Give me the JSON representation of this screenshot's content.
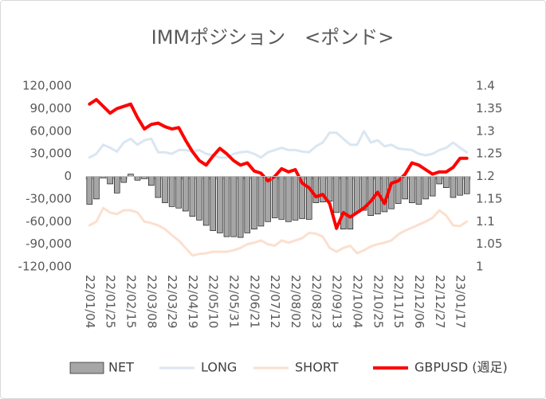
{
  "chart_data": {
    "type": "combo",
    "title": "IMMポジション　<ポンド>",
    "legend": "bottom",
    "categories": [
      "22/01/04",
      null,
      null,
      "22/01/25",
      null,
      null,
      "22/02/15",
      null,
      null,
      "22/03/08",
      null,
      null,
      "22/03/29",
      null,
      null,
      "22/04/19",
      null,
      null,
      "22/05/10",
      null,
      null,
      "22/05/31",
      null,
      null,
      "22/06/21",
      null,
      null,
      "22/07/12",
      null,
      null,
      "22/08/02",
      null,
      null,
      "22/08/23",
      null,
      null,
      "22/09/13",
      null,
      null,
      "22/10/04",
      null,
      null,
      "22/10/25",
      null,
      null,
      "22/11/15",
      null,
      null,
      "22/12/06",
      null,
      null,
      "22/12/27",
      null,
      null,
      "23/01/17",
      null
    ],
    "ylim": [
      -120000,
      120000
    ],
    "yticks": [
      {
        "value": 120000,
        "label": "120,000"
      },
      {
        "value": 90000,
        "label": "90,000"
      },
      {
        "value": 60000,
        "label": "60,000"
      },
      {
        "value": 30000,
        "label": "30,000"
      },
      0,
      {
        "value": -30000,
        "label": "-30,000"
      },
      {
        "value": -60000,
        "label": "-60,000"
      },
      {
        "value": -90000,
        "label": "-90,000"
      },
      {
        "value": -120000,
        "label": "-120,000"
      }
    ],
    "y2lim": [
      1,
      1.4
    ],
    "y2ticks": [
      1.4,
      1.35,
      1.3,
      1.25,
      1.2,
      1.15,
      1.1,
      1.05,
      1
    ],
    "series": [
      {
        "name": "NET",
        "kind": "bar",
        "color": "#a6a6a6",
        "values": [
          -37000,
          -30000,
          -2000,
          -10000,
          -22000,
          -8000,
          3000,
          -5000,
          -3000,
          -12000,
          -28000,
          -35000,
          -40000,
          -42000,
          -46000,
          -53000,
          -58000,
          -65000,
          -72000,
          -75000,
          -80000,
          -80000,
          -81000,
          -75000,
          -70000,
          -66000,
          -60000,
          -55000,
          -57000,
          -60000,
          -58000,
          -56000,
          -57000,
          -35000,
          -34000,
          -33000,
          -48000,
          -70000,
          -70000,
          -48000,
          -45000,
          -52000,
          -50000,
          -47000,
          -43000,
          -36000,
          -30000,
          -35000,
          -37000,
          -30000,
          -26000,
          -10000,
          -15000,
          -28000,
          -25000,
          -23000
        ]
      },
      {
        "name": "LONG",
        "kind": "line",
        "color": "#dae6f2",
        "values": [
          25000,
          30000,
          42000,
          38000,
          33000,
          45000,
          50000,
          42000,
          48000,
          50000,
          32000,
          32000,
          30000,
          35000,
          35000,
          33000,
          35000,
          30000,
          28000,
          25000,
          25000,
          30000,
          32000,
          33000,
          30000,
          25000,
          32000,
          35000,
          38000,
          35000,
          35000,
          33000,
          32000,
          40000,
          45000,
          58000,
          58000,
          50000,
          42000,
          42000,
          60000,
          45000,
          48000,
          40000,
          42000,
          37000,
          36000,
          35000,
          30000,
          28000,
          30000,
          35000,
          38000,
          45000,
          38000,
          32000
        ]
      },
      {
        "name": "SHORT",
        "kind": "line",
        "color": "#fbe0cf",
        "values": [
          -65000,
          -60000,
          -42000,
          -48000,
          -50000,
          -45000,
          -45000,
          -48000,
          -60000,
          -62000,
          -65000,
          -70000,
          -78000,
          -85000,
          -95000,
          -105000,
          -103000,
          -102000,
          -100000,
          -100000,
          -100000,
          -98000,
          -95000,
          -90000,
          -88000,
          -85000,
          -90000,
          -92000,
          -85000,
          -88000,
          -85000,
          -82000,
          -75000,
          -76000,
          -80000,
          -95000,
          -100000,
          -95000,
          -92000,
          -102000,
          -98000,
          -93000,
          -90000,
          -88000,
          -85000,
          -77000,
          -72000,
          -68000,
          -64000,
          -60000,
          -55000,
          -45000,
          -52000,
          -65000,
          -66000,
          -60000
        ]
      },
      {
        "name": "GBPUSD (週足)",
        "kind": "line",
        "axis": "y2",
        "color": "#ff0000",
        "values": [
          1.36,
          1.37,
          1.355,
          1.34,
          1.35,
          1.355,
          1.36,
          1.33,
          1.305,
          1.315,
          1.318,
          1.31,
          1.305,
          1.308,
          1.28,
          1.255,
          1.235,
          1.225,
          1.245,
          1.262,
          1.25,
          1.235,
          1.225,
          1.23,
          1.212,
          1.207,
          1.19,
          1.2,
          1.217,
          1.21,
          1.215,
          1.185,
          1.175,
          1.155,
          1.16,
          1.14,
          1.085,
          1.12,
          1.11,
          1.12,
          1.13,
          1.145,
          1.165,
          1.14,
          1.185,
          1.19,
          1.205,
          1.23,
          1.225,
          1.215,
          1.205,
          1.21,
          1.21,
          1.22,
          1.24,
          1.24
        ]
      }
    ]
  }
}
